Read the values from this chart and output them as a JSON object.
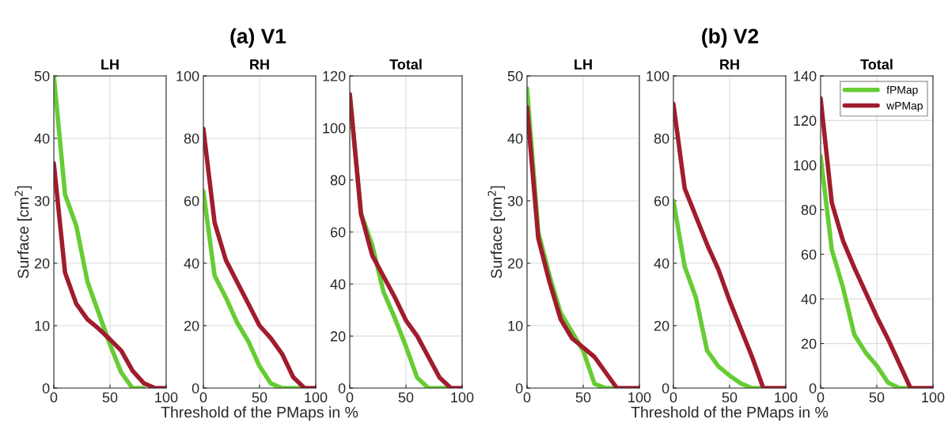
{
  "chart_data": [
    {
      "type": "line",
      "title": "LH",
      "ylabel": "Surface [cm$^{2}$]",
      "annotations": [
        "(a) V1"
      ],
      "xlim": [
        0,
        100
      ],
      "xticks": [
        0,
        50,
        100
      ],
      "ylim": [
        0,
        50
      ],
      "yticks": [
        0,
        10,
        20,
        30,
        40,
        50
      ],
      "grid": true,
      "series": [
        {
          "color": "#66cc33",
          "x": [
            0,
            10,
            20,
            30,
            40,
            50,
            60,
            70,
            80
          ],
          "values": [
            50,
            31,
            26,
            17,
            12,
            7,
            2.5,
            0,
            0
          ]
        },
        {
          "color": "#a01c2e",
          "x": [
            0,
            10,
            20,
            30,
            40,
            50,
            60,
            70,
            80,
            90,
            100
          ],
          "values": [
            36,
            18.5,
            13.5,
            11,
            9.5,
            7.8,
            6,
            2.8,
            0.8,
            0,
            0
          ]
        }
      ]
    },
    {
      "type": "line",
      "title": "RH",
      "xlabel": "Threshold of the PMaps in %",
      "xlim": [
        0,
        100
      ],
      "xticks": [
        0,
        50,
        100
      ],
      "ylim": [
        0,
        100
      ],
      "yticks": [
        0,
        20,
        40,
        60,
        80,
        100
      ],
      "grid": true,
      "series": [
        {
          "color": "#66cc33",
          "x": [
            0,
            10,
            20,
            30,
            40,
            50,
            60,
            70,
            80,
            90
          ],
          "values": [
            63,
            36,
            29,
            21,
            15,
            7,
            1.5,
            0,
            0,
            0
          ]
        },
        {
          "color": "#a01c2e",
          "x": [
            0,
            10,
            20,
            30,
            40,
            50,
            60,
            70,
            80,
            90,
            100
          ],
          "values": [
            83,
            53,
            41,
            34,
            27,
            20,
            16,
            11,
            3.5,
            0,
            0
          ]
        }
      ]
    },
    {
      "type": "line",
      "title": "Total",
      "xlim": [
        0,
        100
      ],
      "xticks": [
        0,
        50,
        100
      ],
      "ylim": [
        0,
        120
      ],
      "yticks": [
        0,
        20,
        40,
        60,
        80,
        100,
        120
      ],
      "grid": true,
      "series": [
        {
          "color": "#66cc33",
          "x": [
            0,
            10,
            20,
            30,
            40,
            50,
            60,
            70,
            80,
            90
          ],
          "values": [
            113,
            67,
            55,
            37,
            27,
            16,
            4,
            0,
            0,
            0
          ]
        },
        {
          "color": "#a01c2e",
          "x": [
            0,
            10,
            20,
            30,
            40,
            50,
            60,
            70,
            80,
            90,
            100
          ],
          "values": [
            113,
            67,
            51,
            43,
            35,
            26,
            20,
            12,
            4,
            0,
            0
          ]
        }
      ]
    },
    {
      "type": "line",
      "title": "LH",
      "ylabel": "Surface [cm$^{2}$]",
      "annotations": [
        "(b) V2"
      ],
      "xlim": [
        0,
        100
      ],
      "xticks": [
        0,
        50,
        100
      ],
      "ylim": [
        0,
        50
      ],
      "yticks": [
        0,
        10,
        20,
        30,
        40,
        50
      ],
      "grid": true,
      "series": [
        {
          "color": "#66cc33",
          "x": [
            0,
            10,
            20,
            30,
            40,
            50,
            60,
            70,
            80
          ],
          "values": [
            48,
            25,
            18,
            12,
            9,
            6,
            0.7,
            0,
            0
          ]
        },
        {
          "color": "#a01c2e",
          "x": [
            0,
            10,
            20,
            30,
            40,
            50,
            60,
            70,
            80,
            90,
            100
          ],
          "values": [
            45,
            24,
            17,
            11,
            8,
            6.5,
            5,
            2.5,
            0,
            0,
            0
          ]
        }
      ]
    },
    {
      "type": "line",
      "title": "RH",
      "xlabel": "Threshold of the PMaps in %",
      "xlim": [
        0,
        100
      ],
      "xticks": [
        0,
        50,
        100
      ],
      "ylim": [
        0,
        100
      ],
      "yticks": [
        0,
        20,
        40,
        60,
        80,
        100
      ],
      "grid": true,
      "series": [
        {
          "color": "#66cc33",
          "x": [
            0,
            10,
            20,
            30,
            40,
            50,
            60,
            70,
            80
          ],
          "values": [
            60,
            39,
            29,
            12,
            7,
            4,
            1.5,
            0,
            0
          ]
        },
        {
          "color": "#a01c2e",
          "x": [
            0,
            10,
            20,
            30,
            40,
            50,
            60,
            70,
            80,
            90,
            100
          ],
          "values": [
            91,
            64,
            55,
            46,
            38,
            28,
            19,
            10,
            0,
            0,
            0
          ]
        }
      ]
    },
    {
      "type": "line",
      "title": "Total",
      "xlim": [
        0,
        100
      ],
      "xticks": [
        0,
        50,
        100
      ],
      "ylim": [
        0,
        140
      ],
      "yticks": [
        0,
        20,
        40,
        60,
        80,
        100,
        120,
        140
      ],
      "grid": true,
      "legend": "top right",
      "series": [
        {
          "name": "fPMap",
          "color": "#66cc33",
          "x": [
            0,
            10,
            20,
            30,
            40,
            50,
            60,
            70,
            80
          ],
          "values": [
            104,
            62,
            45,
            24,
            16,
            10,
            2.5,
            0,
            0
          ]
        },
        {
          "name": "wPMap",
          "color": "#a01c2e",
          "x": [
            0,
            10,
            20,
            30,
            40,
            50,
            60,
            70,
            80,
            90,
            100
          ],
          "values": [
            130,
            83,
            66,
            54,
            43,
            32,
            22,
            11,
            0,
            0,
            0
          ]
        }
      ]
    }
  ]
}
